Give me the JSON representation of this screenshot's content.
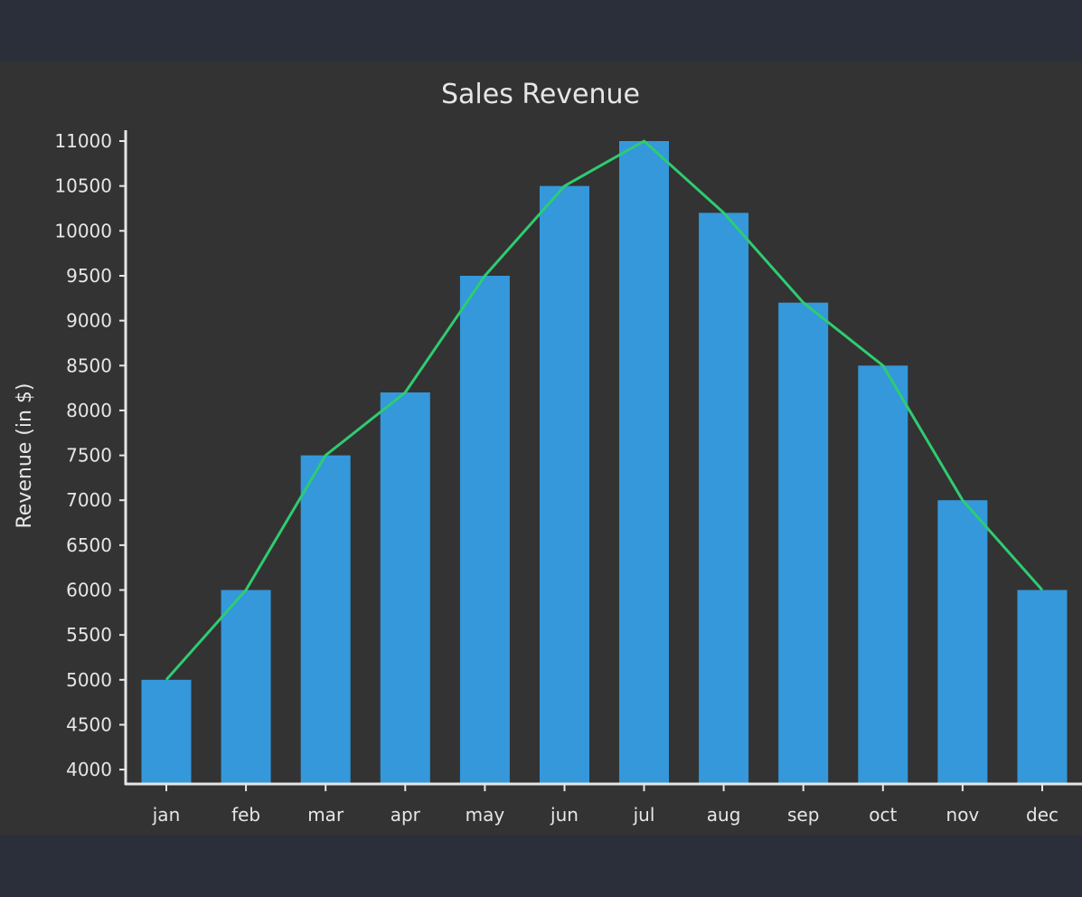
{
  "colors": {
    "page_background": "#2a2f3a",
    "chart_background": "#333333",
    "bar": "#3498db",
    "line": "#2ecc71",
    "axis": "#e6e6e6",
    "text": "#e6e6e6"
  },
  "chart_data": {
    "type": "bar",
    "title": "Sales Revenue",
    "xlabel": "",
    "ylabel": "Revenue (in $)",
    "categories": [
      "jan",
      "feb",
      "mar",
      "apr",
      "may",
      "jun",
      "jul",
      "aug",
      "sep",
      "oct",
      "nov",
      "dec"
    ],
    "series": [
      {
        "name": "Revenue (bars)",
        "type": "bar",
        "values": [
          5000,
          6000,
          7500,
          8200,
          9500,
          10500,
          11000,
          10200,
          9200,
          8500,
          7000,
          6000
        ]
      },
      {
        "name": "Revenue (line)",
        "type": "line",
        "values": [
          5000,
          6000,
          7500,
          8200,
          9500,
          10500,
          11000,
          10200,
          9200,
          8500,
          7000,
          6000
        ]
      }
    ],
    "ylim": [
      3850,
      11000
    ],
    "yticks": [
      4000,
      4500,
      5000,
      5500,
      6000,
      6500,
      7000,
      7500,
      8000,
      8500,
      9000,
      9500,
      10000,
      10500,
      11000
    ],
    "grid": false,
    "legend": "none"
  }
}
